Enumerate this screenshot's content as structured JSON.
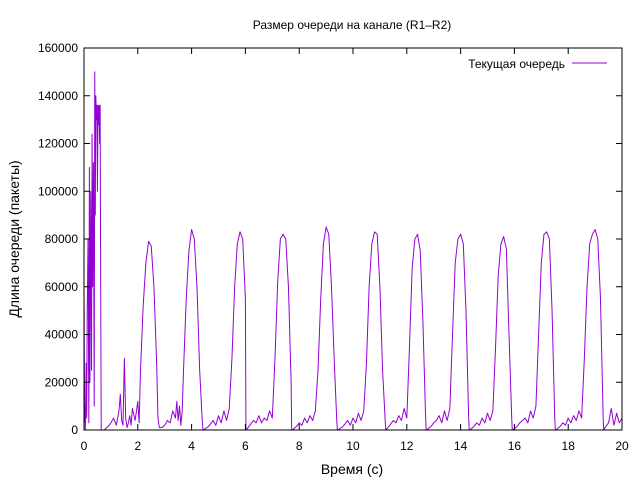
{
  "chart_data": {
    "type": "line",
    "title": "Размер очереди на канале (R1–R2)",
    "xlabel": "Время (с)",
    "ylabel": "Длина очереди (пакеты)",
    "xlim": [
      0,
      20
    ],
    "ylim": [
      0,
      160000
    ],
    "xticks": [
      0,
      2,
      4,
      6,
      8,
      10,
      12,
      14,
      16,
      18,
      20
    ],
    "yticks": [
      0,
      20000,
      40000,
      60000,
      80000,
      100000,
      120000,
      140000,
      160000
    ],
    "grid": false,
    "legend_position": "top-right",
    "series": [
      {
        "name": "Текущая очередь",
        "color": "#9400d3",
        "x": [
          0.0,
          0.02,
          0.05,
          0.08,
          0.1,
          0.12,
          0.15,
          0.18,
          0.2,
          0.22,
          0.25,
          0.28,
          0.3,
          0.32,
          0.35,
          0.38,
          0.4,
          0.42,
          0.44,
          0.46,
          0.48,
          0.5,
          0.52,
          0.54,
          0.56,
          0.58,
          0.6,
          0.62,
          0.64,
          0.66,
          0.7,
          0.75,
          0.8,
          0.9,
          1.0,
          1.1,
          1.2,
          1.3,
          1.35,
          1.4,
          1.45,
          1.5,
          1.55,
          1.6,
          1.65,
          1.7,
          1.75,
          1.8,
          1.9,
          2.0,
          2.05,
          2.1,
          2.2,
          2.3,
          2.4,
          2.5,
          2.6,
          2.7,
          2.75,
          2.8,
          2.9,
          3.0,
          3.1,
          3.2,
          3.3,
          3.4,
          3.45,
          3.5,
          3.55,
          3.6,
          3.65,
          3.7,
          3.8,
          3.9,
          4.0,
          4.1,
          4.2,
          4.3,
          4.4,
          4.42,
          4.5,
          4.6,
          4.7,
          4.8,
          4.9,
          5.0,
          5.1,
          5.2,
          5.3,
          5.4,
          5.5,
          5.6,
          5.7,
          5.8,
          5.9,
          6.0,
          6.02,
          6.1,
          6.2,
          6.3,
          6.4,
          6.5,
          6.6,
          6.7,
          6.8,
          6.9,
          7.0,
          7.1,
          7.2,
          7.3,
          7.4,
          7.5,
          7.6,
          7.7,
          7.72,
          7.8,
          7.9,
          8.0,
          8.1,
          8.2,
          8.3,
          8.4,
          8.5,
          8.6,
          8.7,
          8.8,
          8.9,
          9.0,
          9.1,
          9.2,
          9.3,
          9.4,
          9.42,
          9.5,
          9.6,
          9.7,
          9.8,
          9.9,
          10.0,
          10.1,
          10.2,
          10.3,
          10.4,
          10.5,
          10.6,
          10.7,
          10.8,
          10.9,
          11.0,
          11.1,
          11.2,
          11.22,
          11.3,
          11.4,
          11.5,
          11.6,
          11.7,
          11.8,
          11.9,
          12.0,
          12.1,
          12.2,
          12.3,
          12.4,
          12.5,
          12.6,
          12.7,
          12.72,
          12.8,
          12.9,
          13.0,
          13.1,
          13.2,
          13.3,
          13.4,
          13.5,
          13.6,
          13.7,
          13.8,
          13.9,
          14.0,
          14.1,
          14.2,
          14.3,
          14.32,
          14.4,
          14.5,
          14.6,
          14.7,
          14.8,
          14.9,
          15.0,
          15.1,
          15.2,
          15.3,
          15.4,
          15.5,
          15.6,
          15.7,
          15.8,
          15.9,
          15.92,
          16.0,
          16.1,
          16.2,
          16.3,
          16.4,
          16.5,
          16.6,
          16.7,
          16.8,
          16.9,
          17.0,
          17.1,
          17.2,
          17.3,
          17.4,
          17.5,
          17.52,
          17.6,
          17.7,
          17.8,
          17.9,
          18.0,
          18.1,
          18.2,
          18.3,
          18.4,
          18.5,
          18.6,
          18.7,
          18.8,
          18.9,
          19.0,
          19.1,
          19.2,
          19.3,
          19.32,
          19.4,
          19.5,
          19.6,
          19.7,
          19.8,
          19.9,
          20.0
        ],
        "values": [
          60000,
          10000,
          0,
          28000,
          5000,
          50000,
          80000,
          3000,
          110000,
          20000,
          100000,
          25000,
          124000,
          60000,
          112000,
          10000,
          150000,
          90000,
          140000,
          130000,
          136000,
          100000,
          136000,
          128000,
          136000,
          120000,
          136000,
          60000,
          0,
          0,
          0,
          0,
          500,
          1500,
          3000,
          5000,
          2000,
          8000,
          15000,
          4000,
          2000,
          30000,
          5000,
          1000,
          3000,
          6000,
          2000,
          9000,
          4000,
          12000,
          3000,
          25000,
          52000,
          70000,
          79000,
          77000,
          60000,
          28000,
          5000,
          1000,
          1000,
          2000,
          4000,
          3000,
          8000,
          5000,
          12000,
          4000,
          10000,
          2000,
          8000,
          25000,
          55000,
          75000,
          84000,
          80000,
          60000,
          25000,
          3000,
          0,
          500,
          1200,
          2500,
          4000,
          2000,
          6000,
          3000,
          8000,
          4000,
          9000,
          30000,
          60000,
          78000,
          83000,
          80000,
          55000,
          0,
          1000,
          2500,
          4000,
          3000,
          6000,
          3000,
          5000,
          4000,
          8000,
          5000,
          30000,
          62000,
          80000,
          82000,
          80000,
          60000,
          20000,
          0,
          500,
          1500,
          3000,
          2000,
          5000,
          3000,
          6000,
          4000,
          8000,
          25000,
          55000,
          78000,
          85000,
          82000,
          60000,
          30000,
          3000,
          0,
          500,
          1200,
          2500,
          4000,
          2000,
          5000,
          3000,
          7000,
          4000,
          8000,
          28000,
          60000,
          78000,
          83000,
          82000,
          60000,
          25000,
          3000,
          0,
          1000,
          2500,
          4000,
          3000,
          6000,
          4000,
          9000,
          5000,
          35000,
          68000,
          80000,
          82000,
          75000,
          45000,
          5000,
          0,
          500,
          1500,
          3000,
          4000,
          6000,
          3000,
          8000,
          4000,
          9000,
          40000,
          70000,
          80000,
          82000,
          78000,
          50000,
          5000,
          0,
          500,
          1500,
          3000,
          2000,
          5000,
          3000,
          7000,
          4000,
          8000,
          35000,
          65000,
          78000,
          81000,
          76000,
          40000,
          5000,
          0,
          500,
          1500,
          3000,
          4000,
          5000,
          3000,
          8000,
          5000,
          10000,
          40000,
          70000,
          82000,
          83000,
          80000,
          50000,
          5000,
          0,
          500,
          1500,
          3000,
          2000,
          5000,
          3000,
          6000,
          4000,
          8000,
          5000,
          30000,
          60000,
          78000,
          82000,
          84000,
          80000,
          55000,
          5000,
          0,
          1500,
          3000,
          9000,
          2000,
          7000,
          3000,
          5000
        ]
      }
    ]
  }
}
